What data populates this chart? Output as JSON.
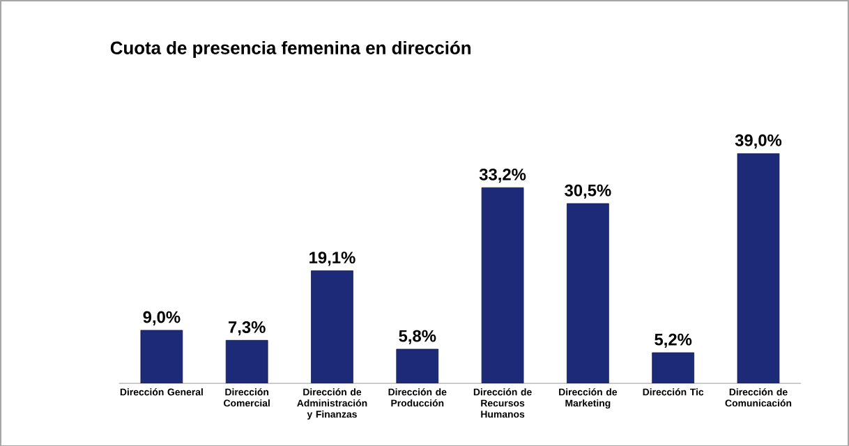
{
  "chart_data": {
    "type": "bar",
    "title": "Cuota de presencia femenina en dirección",
    "categories": [
      "Dirección General",
      "Dirección Comercial",
      "Dirección de Administración y Finanzas",
      "Dirección de Producción",
      "Dirección de Recursos Humanos",
      "Dirección de Marketing",
      "Dirección Tic",
      "Dirección de Comunicación"
    ],
    "values": [
      9.0,
      7.3,
      19.1,
      5.8,
      33.2,
      30.5,
      5.2,
      39.0
    ],
    "value_labels": [
      "9,0%",
      "7,3%",
      "19,1%",
      "5,8%",
      "33,2%",
      "30,5%",
      "5,2%",
      "39,0%"
    ],
    "color": "#1c2a78"
  }
}
